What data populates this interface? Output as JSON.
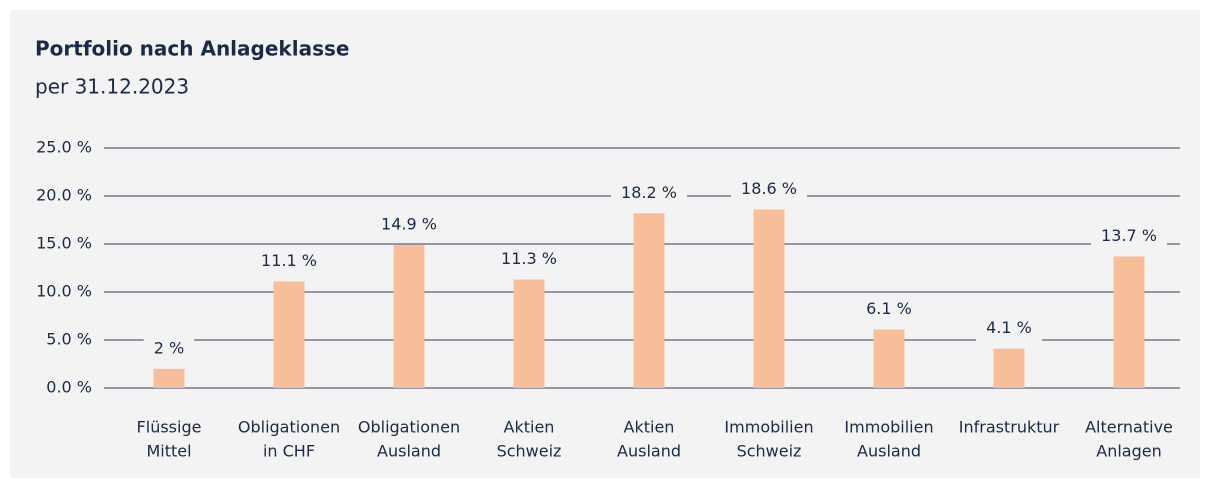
{
  "chart_data": {
    "type": "bar",
    "title": "Portfolio nach Anlageklasse",
    "subtitle": "per 31.12.2023",
    "categories": [
      [
        "Flüssige",
        "Mittel"
      ],
      [
        "Obligationen",
        "in CHF"
      ],
      [
        "Obligationen",
        "Ausland"
      ],
      [
        "Aktien",
        "Schweiz"
      ],
      [
        "Aktien",
        "Ausland"
      ],
      [
        "Immobilien",
        "Schweiz"
      ],
      [
        "Immobilien",
        "Ausland"
      ],
      [
        "Infrastruktur"
      ],
      [
        "Alternative",
        "Anlagen"
      ]
    ],
    "values": [
      2,
      11.1,
      14.9,
      11.3,
      18.2,
      18.6,
      6.1,
      4.1,
      13.7
    ],
    "value_labels": [
      "2 %",
      "11.1 %",
      "14.9 %",
      "11.3 %",
      "18.2 %",
      "18.6 %",
      "6.1 %",
      "4.1 %",
      "13.7 %"
    ],
    "color": "#f7be99",
    "ylim": [
      0,
      25
    ],
    "yticks": [
      {
        "value": 0,
        "label": "0.0 %"
      },
      {
        "value": 5,
        "label": "5.0 %"
      },
      {
        "value": 10,
        "label": "10.0 %"
      },
      {
        "value": 15,
        "label": "15.0 %"
      },
      {
        "value": 20,
        "label": "20.0 %"
      },
      {
        "value": 25,
        "label": "25.0 %"
      }
    ],
    "grid": true
  }
}
